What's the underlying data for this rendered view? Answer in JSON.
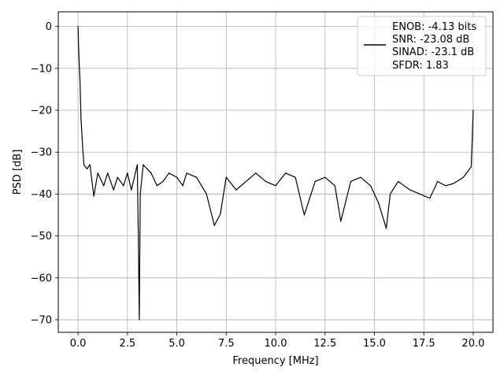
{
  "chart_data": {
    "type": "line",
    "xlabel": "Frequency [MHz]",
    "ylabel": "PSD [dB]",
    "xlim": [
      -1.0,
      21.0
    ],
    "ylim": [
      -73.0,
      3.5
    ],
    "xticks": [
      0.0,
      2.5,
      5.0,
      7.5,
      10.0,
      12.5,
      15.0,
      17.5,
      20.0
    ],
    "xtick_labels": [
      "0.0",
      "2.5",
      "5.0",
      "7.5",
      "10.0",
      "12.5",
      "15.0",
      "17.5",
      "20.0"
    ],
    "yticks": [
      0,
      -10,
      -20,
      -30,
      -40,
      -50,
      -60,
      -70
    ],
    "ytick_labels": [
      "0",
      "−10",
      "−20",
      "−30",
      "−40",
      "−50",
      "−60",
      "−70"
    ],
    "grid": true,
    "legend_position": "top-right",
    "line_color": "#000000",
    "series": [
      {
        "legend_lines": [
          "ENOB: -4.13 bits",
          "SNR: -23.08 dB",
          "SINAD: -23.1 dB",
          "SFDR: 1.83"
        ],
        "x": [
          0.0,
          0.03,
          0.06,
          0.1,
          0.15,
          0.2,
          0.25,
          0.3,
          0.45,
          0.6,
          0.8,
          1.0,
          1.3,
          1.5,
          1.8,
          2.0,
          2.3,
          2.5,
          2.7,
          2.9,
          3.0,
          3.05,
          3.1,
          3.15,
          3.3,
          3.5,
          3.7,
          4.0,
          4.3,
          4.6,
          5.0,
          5.3,
          5.5,
          6.0,
          6.5,
          6.9,
          7.2,
          7.5,
          8.0,
          8.5,
          9.0,
          9.5,
          10.0,
          10.5,
          11.0,
          11.45,
          12.0,
          12.5,
          13.0,
          13.3,
          13.8,
          14.3,
          14.8,
          15.2,
          15.6,
          15.8,
          16.2,
          16.8,
          17.3,
          17.8,
          18.2,
          18.6,
          19.0,
          19.5,
          19.9,
          20.0
        ],
        "y": [
          0.0,
          -5.0,
          -9.0,
          -13.0,
          -22.0,
          -26.0,
          -30.0,
          -33.0,
          -34.0,
          -33.0,
          -40.5,
          -35.0,
          -38.0,
          -35.0,
          -39.0,
          -36.0,
          -38.0,
          -35.0,
          -39.0,
          -35.0,
          -33.0,
          -50.0,
          -70.0,
          -40.0,
          -33.0,
          -34.0,
          -35.0,
          -38.0,
          -37.0,
          -35.0,
          -36.0,
          -38.0,
          -35.0,
          -36.0,
          -40.0,
          -47.5,
          -44.8,
          -36.0,
          -39.0,
          -37.0,
          -35.0,
          -37.0,
          -38.0,
          -35.0,
          -36.0,
          -45.0,
          -37.0,
          -36.0,
          -38.0,
          -46.5,
          -37.0,
          -36.0,
          -38.0,
          -42.0,
          -48.2,
          -40.0,
          -37.0,
          -39.0,
          -40.0,
          -41.0,
          -37.0,
          -38.0,
          -37.5,
          -36.0,
          -33.5,
          -20.0
        ]
      }
    ]
  }
}
